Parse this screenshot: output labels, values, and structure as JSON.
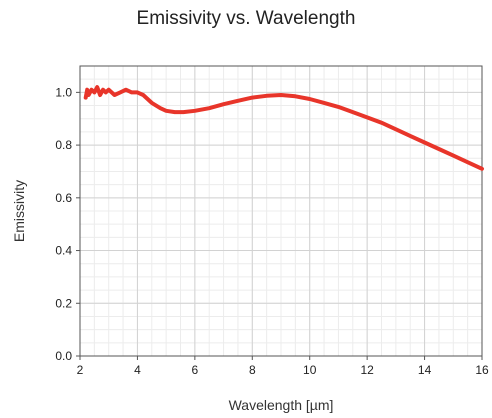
{
  "chart_data": {
    "type": "line",
    "title": "Emissivity vs. Wavelength",
    "xlabel": "Wavelength [µm]",
    "ylabel": "Emissivity",
    "xlim": [
      2,
      16
    ],
    "ylim": [
      0,
      1.1
    ],
    "xticks": [
      2,
      4,
      6,
      8,
      10,
      12,
      14,
      16
    ],
    "yticks": [
      0.0,
      0.2,
      0.4,
      0.6,
      0.8,
      1.0
    ],
    "ytick_labels": [
      "0.0",
      "0.2",
      "0.4",
      "0.6",
      "0.8",
      "1.0"
    ],
    "grid": true,
    "minor_grid": true,
    "series": [
      {
        "color": "#e8352a",
        "x": [
          2.2,
          2.25,
          2.3,
          2.4,
          2.5,
          2.6,
          2.7,
          2.8,
          2.9,
          3.0,
          3.2,
          3.4,
          3.6,
          3.8,
          4.0,
          4.2,
          4.5,
          4.8,
          5.0,
          5.3,
          5.6,
          6.0,
          6.5,
          7.0,
          7.5,
          8.0,
          8.5,
          9.0,
          9.5,
          10.0,
          10.5,
          11.0,
          11.5,
          12.0,
          12.5,
          13.0,
          13.5,
          14.0,
          14.5,
          15.0,
          15.5,
          16.0
        ],
        "y": [
          0.98,
          1.01,
          0.99,
          1.01,
          1.0,
          1.02,
          0.99,
          1.01,
          1.0,
          1.01,
          0.99,
          1.0,
          1.01,
          1.0,
          1.0,
          0.99,
          0.96,
          0.94,
          0.93,
          0.925,
          0.925,
          0.93,
          0.94,
          0.955,
          0.968,
          0.98,
          0.987,
          0.99,
          0.985,
          0.975,
          0.96,
          0.945,
          0.925,
          0.905,
          0.885,
          0.86,
          0.835,
          0.81,
          0.785,
          0.76,
          0.735,
          0.71
        ]
      }
    ]
  }
}
